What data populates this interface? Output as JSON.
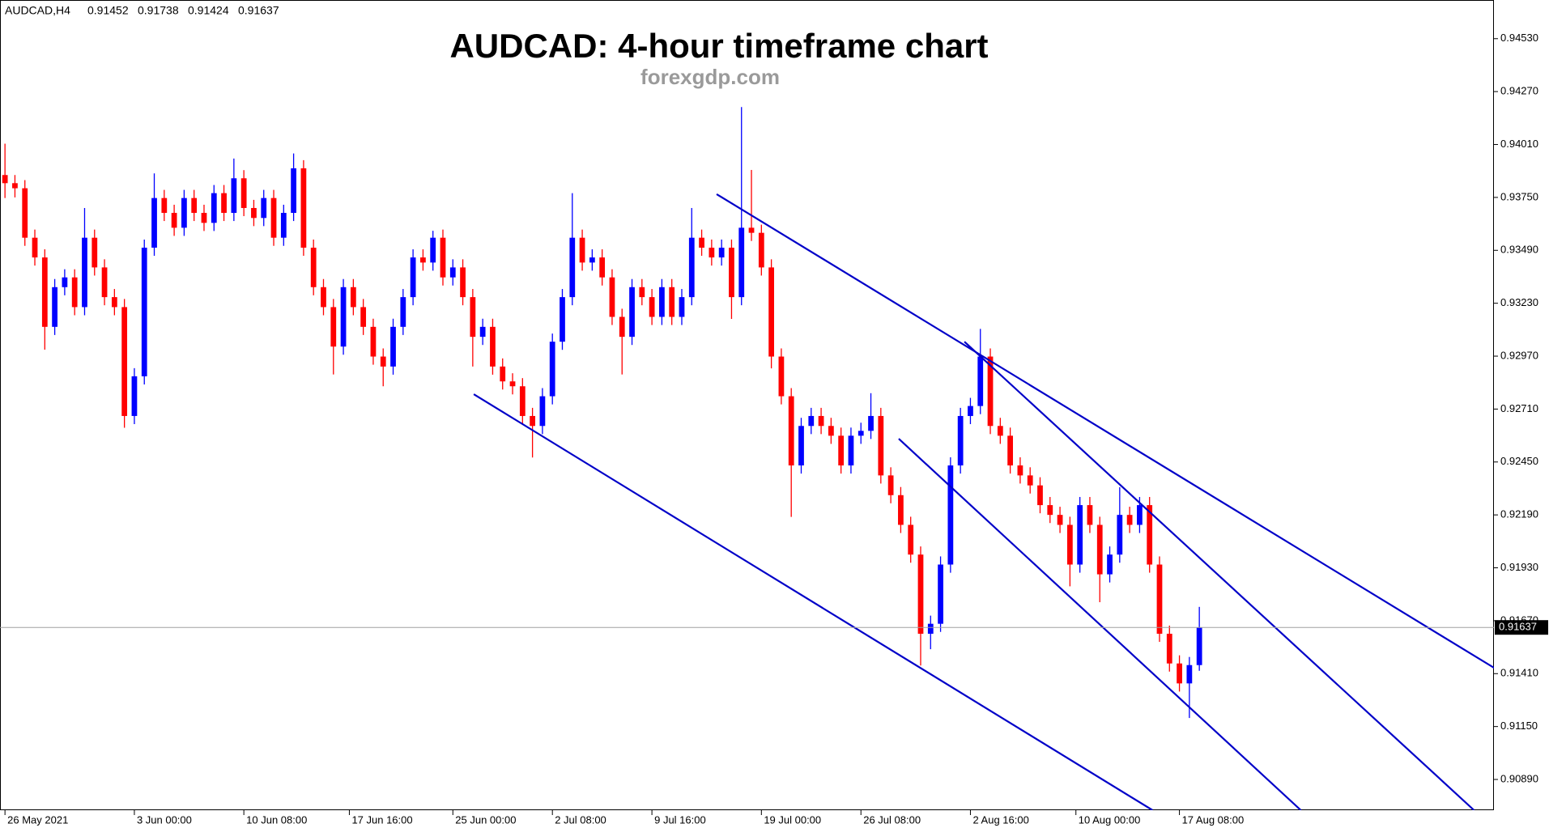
{
  "chart_data": {
    "type": "candlestick",
    "symbol": "AUDCAD,H4",
    "title": "AUDCAD: 4-hour timeframe chart",
    "subtitle": "forexgdp.com",
    "open": [
      0.9386,
      0.9382,
      0.93795,
      0.93552,
      0.93455,
      0.93114,
      0.93309,
      0.93357,
      0.93211,
      0.93552,
      0.93406,
      0.9326,
      0.93211,
      0.92676,
      0.92871,
      0.93503,
      0.93747,
      0.93674,
      0.93601,
      0.93747,
      0.93674,
      0.93625,
      0.93771,
      0.93674,
      0.93844,
      0.93698,
      0.93649,
      0.93747,
      0.93552,
      0.93674,
      0.93893,
      0.93503,
      0.93309,
      0.93211,
      0.93017,
      0.93309,
      0.93211,
      0.93114,
      0.92968,
      0.92919,
      0.93114,
      0.9326,
      0.93455,
      0.9343,
      0.93552,
      0.93357,
      0.93406,
      0.9326,
      0.93065,
      0.93114,
      0.92919,
      0.92846,
      0.92822,
      0.92676,
      0.92627,
      0.92773,
      0.93041,
      0.9326,
      0.93552,
      0.9343,
      0.93455,
      0.93357,
      0.93163,
      0.93065,
      0.93309,
      0.9326,
      0.93163,
      0.93309,
      0.93163,
      0.9326,
      0.93552,
      0.93503,
      0.93455,
      0.93503,
      0.9326,
      0.93601,
      0.93576,
      0.93406,
      0.92968,
      0.92773,
      0.92433,
      0.92627,
      0.92676,
      0.92627,
      0.92579,
      0.92433,
      0.92579,
      0.92603,
      0.92676,
      0.92384,
      0.92287,
      0.92141,
      0.91995,
      0.91606,
      0.91655,
      0.91946,
      0.92433,
      0.92676,
      0.92725,
      0.92968,
      0.92627,
      0.92579,
      0.92433,
      0.92384,
      0.92335,
      0.92238,
      0.9219,
      0.92141,
      0.91946,
      0.92238,
      0.92141,
      0.91898,
      0.91995,
      0.9219,
      0.92141,
      0.92238,
      0.91946,
      0.91606,
      0.9146,
      0.91362,
      0.91452
    ],
    "high": [
      0.94014,
      0.9386,
      0.93835,
      0.93592,
      0.93495,
      0.93349,
      0.93397,
      0.93397,
      0.93698,
      0.93592,
      0.93446,
      0.933,
      0.93251,
      0.92911,
      0.93543,
      0.93868,
      0.93787,
      0.93714,
      0.93787,
      0.93787,
      0.93714,
      0.93811,
      0.93811,
      0.93941,
      0.93884,
      0.93738,
      0.93787,
      0.93787,
      0.93714,
      0.93966,
      0.93933,
      0.93543,
      0.93349,
      0.93251,
      0.93349,
      0.93349,
      0.93251,
      0.93154,
      0.93008,
      0.93154,
      0.933,
      0.93495,
      0.93495,
      0.93586,
      0.93592,
      0.93446,
      0.93446,
      0.933,
      0.93154,
      0.93154,
      0.92959,
      0.92886,
      0.92862,
      0.92716,
      0.92813,
      0.93081,
      0.933,
      0.93771,
      0.93592,
      0.93495,
      0.93495,
      0.93397,
      0.93203,
      0.93349,
      0.93349,
      0.933,
      0.93349,
      0.93349,
      0.933,
      0.93698,
      0.93592,
      0.93543,
      0.93543,
      0.93543,
      0.94194,
      0.93885,
      0.93616,
      0.93446,
      0.93008,
      0.92813,
      0.92667,
      0.92716,
      0.92716,
      0.92667,
      0.92619,
      0.92619,
      0.92643,
      0.92788,
      0.92716,
      0.92424,
      0.92327,
      0.92181,
      0.92035,
      0.91695,
      0.91986,
      0.92473,
      0.92716,
      0.92765,
      0.93104,
      0.93008,
      0.92667,
      0.92619,
      0.92473,
      0.92424,
      0.92375,
      0.92278,
      0.9223,
      0.92181,
      0.92278,
      0.92278,
      0.92181,
      0.92035,
      0.92326,
      0.9223,
      0.92278,
      0.92278,
      0.91986,
      0.91646,
      0.915,
      0.91492,
      0.91738
    ],
    "low": [
      0.93747,
      0.9375,
      0.93512,
      0.93415,
      0.93002,
      0.93074,
      0.93269,
      0.93171,
      0.93171,
      0.93366,
      0.9322,
      0.93171,
      0.92618,
      0.92636,
      0.92831,
      0.93463,
      0.93634,
      0.93561,
      0.93561,
      0.93634,
      0.93585,
      0.93585,
      0.93634,
      0.93634,
      0.93658,
      0.93609,
      0.93609,
      0.93512,
      0.93512,
      0.93634,
      0.93463,
      0.93269,
      0.93171,
      0.9288,
      0.92977,
      0.93171,
      0.93074,
      0.92928,
      0.92822,
      0.92879,
      0.93074,
      0.9322,
      0.9339,
      0.9339,
      0.93317,
      0.93317,
      0.9322,
      0.92919,
      0.93025,
      0.92879,
      0.92806,
      0.92782,
      0.92636,
      0.92472,
      0.92587,
      0.92733,
      0.93001,
      0.9322,
      0.9339,
      0.9339,
      0.93317,
      0.93123,
      0.9288,
      0.93025,
      0.9322,
      0.93123,
      0.93123,
      0.93123,
      0.93123,
      0.9322,
      0.93463,
      0.93415,
      0.93415,
      0.93153,
      0.9322,
      0.93536,
      0.93366,
      0.9291,
      0.92733,
      0.9218,
      0.92393,
      0.92587,
      0.92587,
      0.92539,
      0.92393,
      0.92393,
      0.92539,
      0.92563,
      0.92344,
      0.92247,
      0.92101,
      0.91955,
      0.9145,
      0.9153,
      0.91615,
      0.91906,
      0.92393,
      0.92636,
      0.92685,
      0.92587,
      0.92539,
      0.92393,
      0.92344,
      0.92295,
      0.92198,
      0.9215,
      0.92101,
      0.91839,
      0.91906,
      0.92101,
      0.91761,
      0.91858,
      0.91955,
      0.92101,
      0.92101,
      0.91906,
      0.91566,
      0.9142,
      0.91322,
      0.91192,
      0.91424
    ],
    "close": [
      0.9382,
      0.93795,
      0.93552,
      0.93455,
      0.93114,
      0.93309,
      0.93357,
      0.93211,
      0.93552,
      0.93406,
      0.9326,
      0.93211,
      0.92676,
      0.92871,
      0.93503,
      0.93747,
      0.93674,
      0.93601,
      0.93747,
      0.93674,
      0.93625,
      0.93771,
      0.93674,
      0.93844,
      0.93698,
      0.93649,
      0.93747,
      0.93552,
      0.93674,
      0.93893,
      0.93503,
      0.93309,
      0.93211,
      0.93017,
      0.93309,
      0.93211,
      0.93114,
      0.92968,
      0.92919,
      0.93114,
      0.9326,
      0.93455,
      0.9343,
      0.93552,
      0.93357,
      0.93406,
      0.9326,
      0.93065,
      0.93114,
      0.92919,
      0.92846,
      0.92822,
      0.92676,
      0.92627,
      0.92773,
      0.93041,
      0.9326,
      0.93552,
      0.9343,
      0.93455,
      0.93357,
      0.93163,
      0.93065,
      0.93309,
      0.9326,
      0.93163,
      0.93309,
      0.93163,
      0.9326,
      0.93552,
      0.93503,
      0.93455,
      0.93503,
      0.9326,
      0.93601,
      0.93576,
      0.93406,
      0.92968,
      0.92773,
      0.92433,
      0.92627,
      0.92676,
      0.92627,
      0.92579,
      0.92433,
      0.92579,
      0.92603,
      0.92676,
      0.92384,
      0.92287,
      0.92141,
      0.91995,
      0.91606,
      0.91655,
      0.91946,
      0.92433,
      0.92676,
      0.92725,
      0.92968,
      0.92627,
      0.92579,
      0.92433,
      0.92384,
      0.92335,
      0.92238,
      0.9219,
      0.92141,
      0.91946,
      0.92238,
      0.92141,
      0.91898,
      0.91995,
      0.9219,
      0.92141,
      0.92238,
      0.91946,
      0.91606,
      0.9146,
      0.91362,
      0.91452,
      0.91637
    ],
    "up_color": "#0000ff",
    "down_color": "#ff0000",
    "trendline_color": "#0000c8",
    "price_line_color": "#a0a0a0",
    "xlim": [
      -0.5,
      149.6
    ],
    "ylim": [
      0.90739,
      0.9472
    ],
    "yticks": [
      {
        "value": 0.9453,
        "label": "0.94530"
      },
      {
        "value": 0.9427,
        "label": "0.94270"
      },
      {
        "value": 0.9401,
        "label": "0.94010"
      },
      {
        "value": 0.9375,
        "label": "0.93750"
      },
      {
        "value": 0.9349,
        "label": "0.93490"
      },
      {
        "value": 0.9323,
        "label": "0.93230"
      },
      {
        "value": 0.9297,
        "label": "0.92970"
      },
      {
        "value": 0.9271,
        "label": "0.92710"
      },
      {
        "value": 0.9245,
        "label": "0.92450"
      },
      {
        "value": 0.9219,
        "label": "0.92190"
      },
      {
        "value": 0.9193,
        "label": "0.91930"
      },
      {
        "value": 0.9167,
        "label": "0.91670"
      },
      {
        "value": 0.9141,
        "label": "0.91410"
      },
      {
        "value": 0.9115,
        "label": "0.91150"
      },
      {
        "value": 0.9089,
        "label": "0.90890"
      }
    ],
    "xticks": [
      {
        "value": 0,
        "label": "26 May 2021"
      },
      {
        "value": 13,
        "label": "3 Jun 00:00"
      },
      {
        "value": 24,
        "label": "10 Jun 08:00"
      },
      {
        "value": 34.6,
        "label": "17 Jun 16:00"
      },
      {
        "value": 45,
        "label": "25 Jun 00:00"
      },
      {
        "value": 55,
        "label": "2 Jul 08:00"
      },
      {
        "value": 65,
        "label": "9 Jul 16:00"
      },
      {
        "value": 76,
        "label": "19 Jul 00:00"
      },
      {
        "value": 86,
        "label": "26 Jul 08:00"
      },
      {
        "value": 97,
        "label": "2 Aug 16:00"
      },
      {
        "value": 107.6,
        "label": "10 Aug 00:00"
      },
      {
        "value": 118,
        "label": "17 Aug 08:00"
      }
    ],
    "trendlines": [
      {
        "x": [
          71.5,
          149.9
        ],
        "y": [
          0.93766,
          0.9143
        ]
      },
      {
        "x": [
          96.4,
          147.6
        ],
        "y": [
          0.93041,
          0.90739
        ]
      },
      {
        "x": [
          89.8,
          130.2
        ],
        "y": [
          0.92564,
          0.90739
        ]
      },
      {
        "x": [
          47.1,
          115.3
        ],
        "y": [
          0.92783,
          0.90739
        ]
      }
    ]
  }
}
